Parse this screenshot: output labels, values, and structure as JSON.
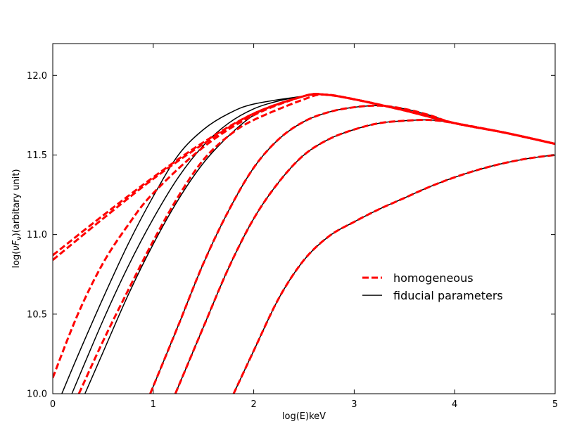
{
  "chart_data": {
    "type": "line",
    "title": "",
    "xlabel": "log(E)keV",
    "ylabel_parts": [
      "log(",
      "νF",
      "ν",
      ")(arbitary unit)"
    ],
    "xlim": [
      0,
      5
    ],
    "ylim": [
      10.0,
      12.2
    ],
    "x_ticks": [
      0,
      1,
      2,
      3,
      4,
      5
    ],
    "x_tick_labels": [
      "0",
      "1",
      "2",
      "3",
      "4",
      "5"
    ],
    "y_ticks": [
      10.0,
      10.5,
      11.0,
      11.5,
      12.0
    ],
    "y_tick_labels": [
      "10.0",
      "10.5",
      "11.0",
      "11.5",
      "12.0"
    ],
    "grid": false,
    "legend_position": "center-right",
    "legend": [
      {
        "label": "homogeneous",
        "color": "#ff0000",
        "style": "dashed"
      },
      {
        "label": "fiducial parameters",
        "color": "#000000",
        "style": "solid"
      }
    ],
    "series": [
      {
        "legend": "homogeneous",
        "color": "#ff0000",
        "style": "dashed",
        "points": [
          [
            0,
            10.87
          ],
          [
            0.5,
            11.12
          ],
          [
            1.0,
            11.36
          ],
          [
            1.5,
            11.58
          ],
          [
            2.0,
            11.76
          ],
          [
            2.5,
            11.87
          ],
          [
            2.7,
            11.88
          ],
          [
            3.0,
            11.85
          ],
          [
            3.5,
            11.78
          ],
          [
            4.0,
            11.7
          ],
          [
            4.5,
            11.64
          ],
          [
            5.0,
            11.57
          ]
        ]
      },
      {
        "legend": "homogeneous",
        "color": "#ff0000",
        "style": "dashed",
        "points": [
          [
            0,
            10.84
          ],
          [
            0.5,
            11.1
          ],
          [
            1.0,
            11.35
          ],
          [
            1.5,
            11.57
          ],
          [
            2.0,
            11.76
          ],
          [
            2.5,
            11.87
          ],
          [
            2.7,
            11.88
          ],
          [
            3.0,
            11.85
          ],
          [
            3.5,
            11.78
          ],
          [
            4.0,
            11.7
          ],
          [
            4.5,
            11.64
          ],
          [
            5.0,
            11.57
          ]
        ]
      },
      {
        "legend": "homogeneous",
        "color": "#ff0000",
        "style": "dashed",
        "points": [
          [
            0,
            10.1
          ],
          [
            0.25,
            10.5
          ],
          [
            0.5,
            10.82
          ],
          [
            0.75,
            11.06
          ],
          [
            1.0,
            11.26
          ],
          [
            1.5,
            11.55
          ],
          [
            2.0,
            11.75
          ],
          [
            2.5,
            11.87
          ],
          [
            2.7,
            11.88
          ],
          [
            3.0,
            11.85
          ],
          [
            3.5,
            11.78
          ],
          [
            4.0,
            11.7
          ],
          [
            4.5,
            11.64
          ],
          [
            5.0,
            11.57
          ]
        ]
      },
      {
        "legend": "homogeneous",
        "color": "#ff0000",
        "style": "dashed",
        "points": [
          [
            0.26,
            10.0
          ],
          [
            0.5,
            10.33
          ],
          [
            0.75,
            10.65
          ],
          [
            1.0,
            10.96
          ],
          [
            1.25,
            11.24
          ],
          [
            1.5,
            11.47
          ],
          [
            1.75,
            11.62
          ],
          [
            2.0,
            11.72
          ],
          [
            2.5,
            11.85
          ],
          [
            2.7,
            11.88
          ],
          [
            3.0,
            11.85
          ],
          [
            3.5,
            11.78
          ],
          [
            4.0,
            11.7
          ],
          [
            4.5,
            11.64
          ],
          [
            5.0,
            11.57
          ]
        ]
      },
      {
        "legend": "fiducial parameters",
        "color": "#000000",
        "style": "solid",
        "points": [
          [
            0.09,
            10.0
          ],
          [
            0.25,
            10.24
          ],
          [
            0.5,
            10.6
          ],
          [
            0.75,
            10.94
          ],
          [
            1.0,
            11.24
          ],
          [
            1.25,
            11.5
          ],
          [
            1.5,
            11.66
          ],
          [
            1.75,
            11.76
          ],
          [
            2.0,
            11.82
          ],
          [
            2.5,
            11.87
          ],
          [
            2.7,
            11.88
          ],
          [
            3.0,
            11.85
          ],
          [
            3.5,
            11.78
          ],
          [
            4.0,
            11.7
          ],
          [
            4.5,
            11.64
          ],
          [
            5.0,
            11.57
          ]
        ]
      },
      {
        "legend": "fiducial parameters",
        "color": "#000000",
        "style": "solid",
        "points": [
          [
            0.19,
            10.0
          ],
          [
            0.5,
            10.46
          ],
          [
            0.75,
            10.8
          ],
          [
            1.0,
            11.1
          ],
          [
            1.25,
            11.36
          ],
          [
            1.5,
            11.56
          ],
          [
            1.75,
            11.7
          ],
          [
            2.0,
            11.79
          ],
          [
            2.25,
            11.84
          ],
          [
            2.5,
            11.87
          ],
          [
            2.7,
            11.88
          ],
          [
            3.0,
            11.85
          ],
          [
            3.5,
            11.78
          ],
          [
            4.0,
            11.7
          ],
          [
            4.5,
            11.64
          ],
          [
            5.0,
            11.57
          ]
        ]
      },
      {
        "legend": "fiducial parameters",
        "color": "#000000",
        "style": "solid",
        "points": [
          [
            0.32,
            10.0
          ],
          [
            0.5,
            10.26
          ],
          [
            0.75,
            10.62
          ],
          [
            1.0,
            10.94
          ],
          [
            1.25,
            11.22
          ],
          [
            1.5,
            11.45
          ],
          [
            1.75,
            11.62
          ],
          [
            2.0,
            11.75
          ],
          [
            2.25,
            11.82
          ],
          [
            2.5,
            11.87
          ],
          [
            2.7,
            11.88
          ],
          [
            3.0,
            11.85
          ],
          [
            3.5,
            11.78
          ],
          [
            4.0,
            11.7
          ],
          [
            4.5,
            11.64
          ],
          [
            5.0,
            11.57
          ]
        ]
      },
      {
        "legend": "homogeneous",
        "color": "#ff0000",
        "style": "dashed",
        "paired": true,
        "points": [
          [
            0.97,
            10.0
          ],
          [
            1.25,
            10.43
          ],
          [
            1.5,
            10.82
          ],
          [
            1.75,
            11.15
          ],
          [
            2.0,
            11.42
          ],
          [
            2.25,
            11.6
          ],
          [
            2.5,
            11.71
          ],
          [
            2.75,
            11.77
          ],
          [
            3.0,
            11.8
          ],
          [
            3.25,
            11.81
          ],
          [
            3.5,
            11.79
          ],
          [
            3.75,
            11.75
          ],
          [
            4.0,
            11.7
          ],
          [
            4.5,
            11.64
          ],
          [
            5.0,
            11.57
          ]
        ]
      },
      {
        "legend": "homogeneous",
        "color": "#ff0000",
        "style": "dashed",
        "paired": true,
        "points": [
          [
            1.22,
            10.0
          ],
          [
            1.5,
            10.42
          ],
          [
            1.75,
            10.79
          ],
          [
            2.0,
            11.1
          ],
          [
            2.25,
            11.33
          ],
          [
            2.5,
            11.5
          ],
          [
            2.75,
            11.6
          ],
          [
            3.0,
            11.66
          ],
          [
            3.25,
            11.7
          ],
          [
            3.5,
            11.715
          ],
          [
            3.75,
            11.72
          ],
          [
            4.0,
            11.7
          ],
          [
            4.5,
            11.64
          ],
          [
            5.0,
            11.57
          ]
        ]
      },
      {
        "legend": "homogeneous",
        "color": "#ff0000",
        "style": "dashed",
        "paired": true,
        "points": [
          [
            1.8,
            10.0
          ],
          [
            2.0,
            10.27
          ],
          [
            2.25,
            10.6
          ],
          [
            2.5,
            10.84
          ],
          [
            2.75,
            10.99
          ],
          [
            3.0,
            11.08
          ],
          [
            3.25,
            11.16
          ],
          [
            3.5,
            11.23
          ],
          [
            3.75,
            11.3
          ],
          [
            4.0,
            11.36
          ],
          [
            4.25,
            11.41
          ],
          [
            4.5,
            11.45
          ],
          [
            4.75,
            11.48
          ],
          [
            5.0,
            11.5
          ]
        ]
      }
    ]
  }
}
